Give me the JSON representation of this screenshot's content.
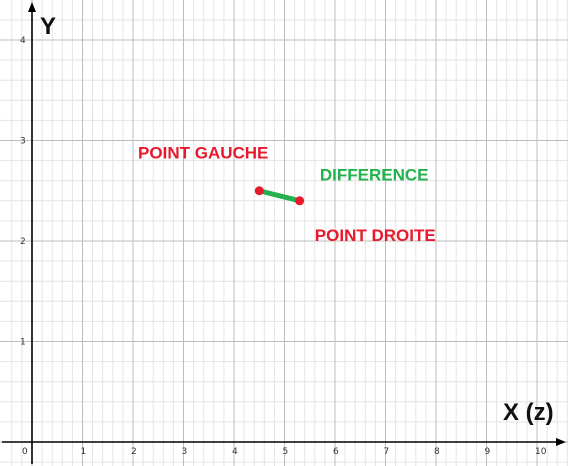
{
  "chart_data": {
    "type": "scatter",
    "xlabel": "X (z)",
    "ylabel": "Y",
    "xlim": [
      0,
      10.7
    ],
    "ylim": [
      0,
      4.2
    ],
    "x_ticks": [
      0,
      1,
      2,
      3,
      4,
      5,
      6,
      7,
      8,
      9,
      10
    ],
    "y_ticks": [
      1,
      2,
      3,
      4
    ],
    "grid": true,
    "minor_grid_step": 0.2,
    "points": [
      {
        "x": 4.5,
        "y": 2.5
      },
      {
        "x": 5.3,
        "y": 2.4
      }
    ],
    "segment": {
      "from": [
        4.5,
        2.5
      ],
      "to": [
        5.3,
        2.4
      ]
    },
    "annotations": [
      {
        "text": "POINT GAUCHE",
        "x": 2.1,
        "y": 2.82,
        "color": "#e8192c"
      },
      {
        "text": "DIFFERENCE",
        "x": 5.7,
        "y": 2.6,
        "color": "#22b14c"
      },
      {
        "text": "POINT DROITE",
        "x": 5.6,
        "y": 2.0,
        "color": "#e8192c"
      }
    ],
    "colors": {
      "point": "#e8192c",
      "segment": "#22b14c",
      "major_grid": "#bdbdbd",
      "minor_grid": "#e4e4e4",
      "axis": "#000000"
    }
  }
}
